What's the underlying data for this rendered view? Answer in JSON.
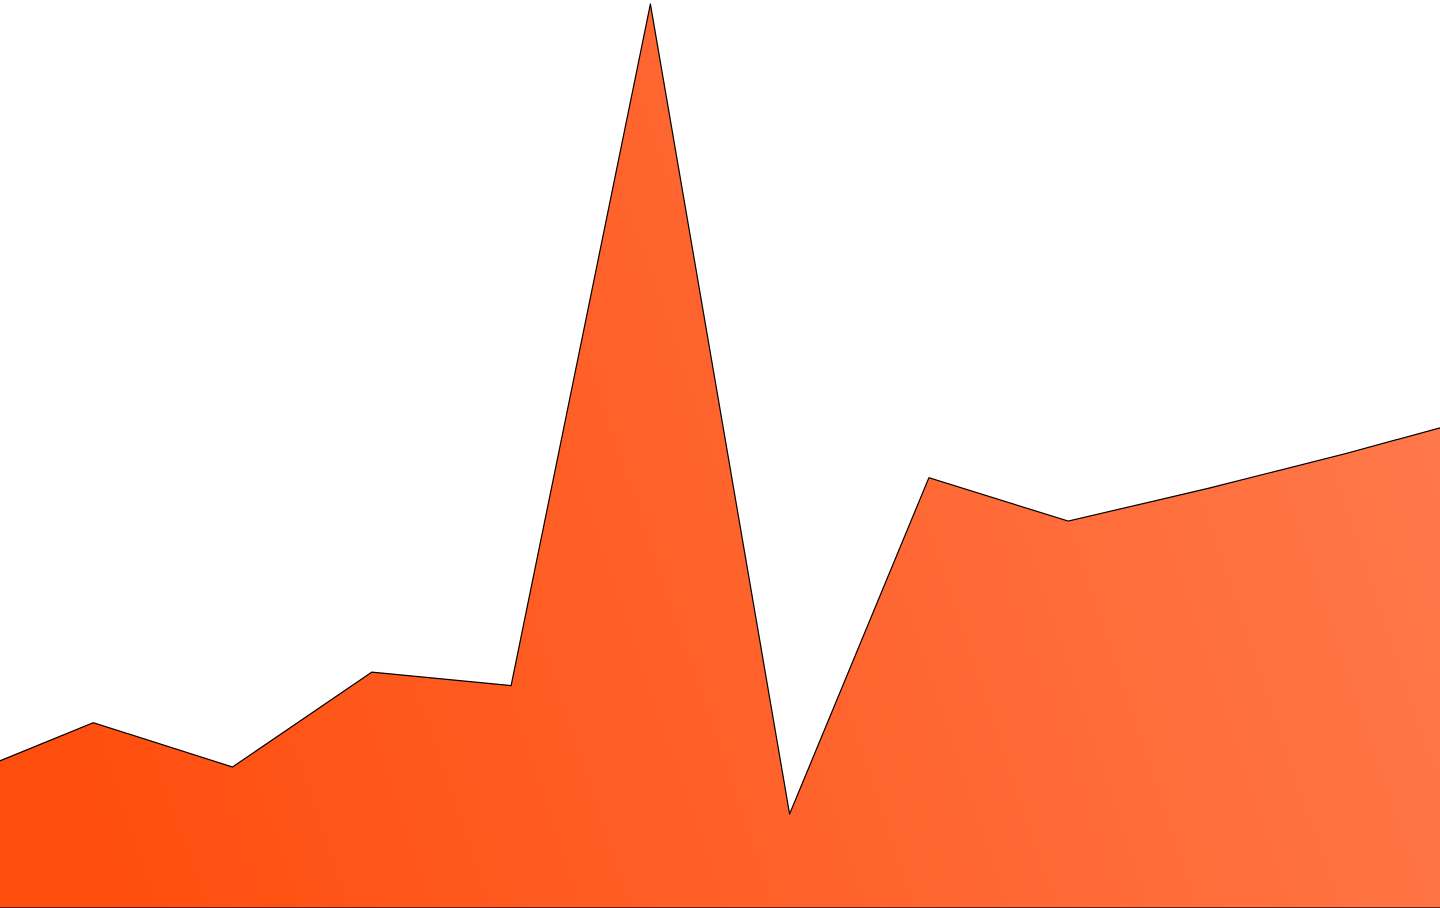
{
  "chart_data": {
    "type": "area",
    "x": [
      0,
      1,
      2,
      3,
      4,
      5,
      6,
      7,
      8,
      9,
      10,
      11
    ],
    "series": [
      {
        "values": [
          0.142,
          0.205,
          0.156,
          0.261,
          0.246,
          1.0,
          0.104,
          0.476,
          0.428,
          0.464,
          0.503,
          0.545
        ]
      }
    ],
    "ylim": [
      0,
      1
    ],
    "xlabel": "",
    "ylabel": "",
    "title": "",
    "grid": false,
    "legend": "none",
    "colors": {
      "fill_start": "#ff4d0d",
      "fill_end": "#ff7a4d",
      "stroke": "#000000"
    }
  }
}
